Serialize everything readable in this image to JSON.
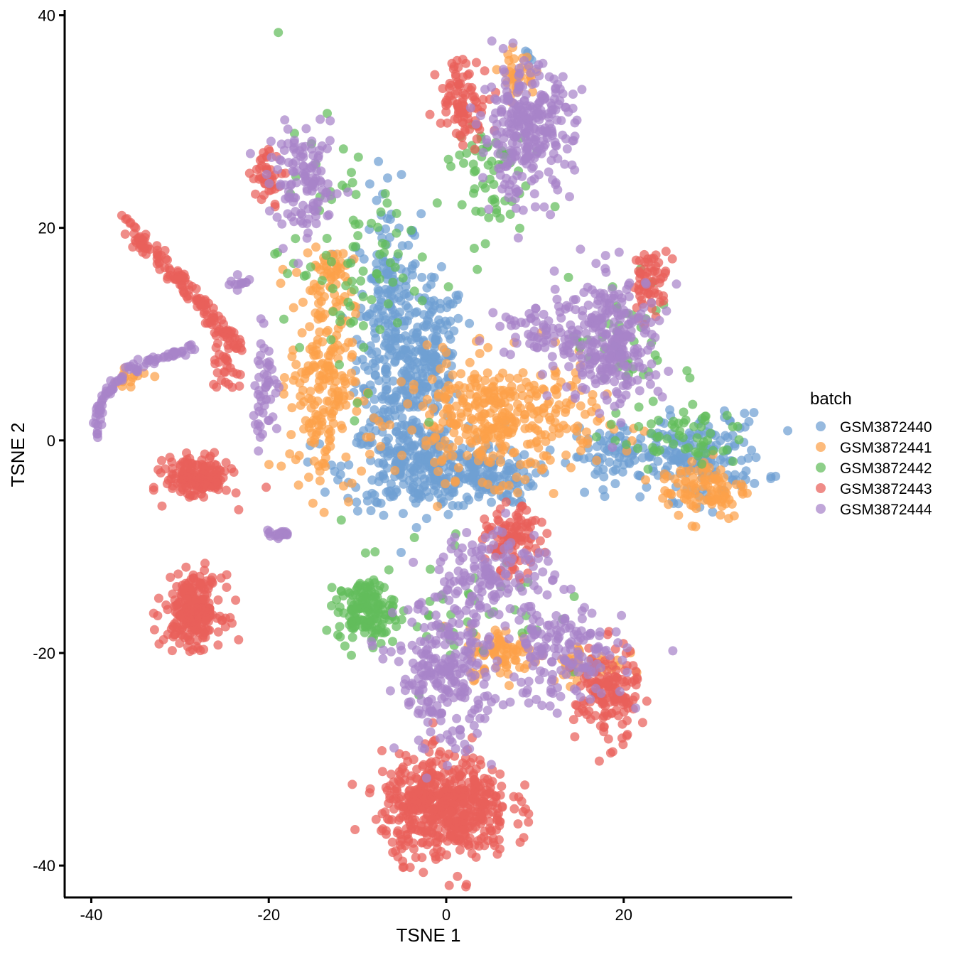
{
  "chart_data": {
    "type": "scatter",
    "xlabel": "TSNE 1",
    "ylabel": "TSNE 2",
    "xlim": [
      -43,
      39
    ],
    "ylim": [
      -43,
      40.5
    ],
    "x_ticks": [
      -40,
      -20,
      0,
      20
    ],
    "y_ticks": [
      40,
      20,
      0,
      -20,
      -40
    ],
    "x_tick_labels": [
      "-40",
      "-20",
      "0",
      "20"
    ],
    "y_tick_labels": [
      "40",
      "20",
      "0",
      "-20",
      "-40"
    ],
    "grid": false,
    "legend": {
      "title": "batch",
      "position": "right",
      "entries": [
        "GSM3872440",
        "GSM3872441",
        "GSM3872442",
        "GSM3872443",
        "GSM3872444"
      ]
    },
    "series": [
      {
        "name": "GSM3872440",
        "color": "#6f9fd2",
        "clusters": [
          {
            "x": -6.5,
            "y": 10,
            "sx": 1.8,
            "sy": 6.5,
            "n": 260
          },
          {
            "x": -3,
            "y": 5,
            "sx": 1.8,
            "sy": 3.5,
            "n": 120
          },
          {
            "x": -1,
            "y": 9,
            "sx": 1.5,
            "sy": 3,
            "n": 80
          },
          {
            "x": -2.5,
            "y": -2.5,
            "sx": 4.5,
            "sy": 2,
            "n": 260
          },
          {
            "x": 4,
            "y": -3.5,
            "sx": 3,
            "sy": 1.2,
            "n": 100
          },
          {
            "x": 28,
            "y": -1.5,
            "sx": 4,
            "sy": 2,
            "n": 180
          },
          {
            "x": 19,
            "y": -1.5,
            "sx": 2.5,
            "sy": 1.2,
            "n": 60
          },
          {
            "x": 9.5,
            "y": 36,
            "sx": 0.4,
            "sy": 0.3,
            "n": 4
          }
        ]
      },
      {
        "name": "GSM3872441",
        "color": "#fca149",
        "clusters": [
          {
            "x": 6,
            "y": 2,
            "sx": 5.5,
            "sy": 2.8,
            "n": 360
          },
          {
            "x": -14,
            "y": 6,
            "sx": 1.8,
            "sy": 5.5,
            "n": 220
          },
          {
            "x": 29,
            "y": -4.5,
            "sx": 2.5,
            "sy": 1.5,
            "n": 100
          },
          {
            "x": 6.5,
            "y": -20,
            "sx": 2,
            "sy": 1.2,
            "n": 80
          },
          {
            "x": 16,
            "y": -21,
            "sx": 2,
            "sy": 1,
            "n": 40
          },
          {
            "x": 8,
            "y": 34.5,
            "sx": 1,
            "sy": 1,
            "n": 40
          },
          {
            "x": -13,
            "y": 16,
            "sx": 1.2,
            "sy": 1,
            "n": 25
          },
          {
            "x": -36,
            "y": 6,
            "sx": 1.5,
            "sy": 0.6,
            "n": 15
          }
        ]
      },
      {
        "name": "GSM3872442",
        "color": "#63bc5c",
        "clusters": [
          {
            "x": -9,
            "y": -16,
            "sx": 1.6,
            "sy": 1.4,
            "n": 150
          },
          {
            "x": -11,
            "y": 17,
            "sx": 4,
            "sy": 6,
            "n": 90
          },
          {
            "x": 4,
            "y": 25,
            "sx": 2.5,
            "sy": 3,
            "n": 60
          },
          {
            "x": 26,
            "y": 0.5,
            "sx": 4,
            "sy": 1.5,
            "n": 60
          },
          {
            "x": 20,
            "y": 9,
            "sx": 3,
            "sy": 3,
            "n": 40
          },
          {
            "x": 0,
            "y": -15,
            "sx": 6,
            "sy": 4,
            "n": 50
          }
        ]
      },
      {
        "name": "GSM3872443",
        "color": "#e9605a",
        "clusters": [
          {
            "x": 0,
            "y": -34.5,
            "sx": 3.6,
            "sy": 2.4,
            "n": 560
          },
          {
            "x": -28.5,
            "y": -16,
            "sx": 1.6,
            "sy": 1.6,
            "n": 240
          },
          {
            "x": -28,
            "y": -3.5,
            "sx": 1.8,
            "sy": 1,
            "n": 170
          },
          {
            "x": 18,
            "y": -24,
            "sx": 1.8,
            "sy": 2.2,
            "n": 150
          },
          {
            "x": 7.5,
            "y": -9.5,
            "sx": 1.5,
            "sy": 1.5,
            "n": 110
          },
          {
            "x": 2,
            "y": 32,
            "sx": 1.5,
            "sy": 2,
            "n": 90
          },
          {
            "x": 23,
            "y": 15,
            "sx": 1,
            "sy": 1.5,
            "n": 60
          },
          {
            "x": -20,
            "y": 25,
            "sx": 1,
            "sy": 1.2,
            "n": 40
          },
          {
            "x": -25,
            "y": 7.5,
            "sx": 0.8,
            "sy": 1.5,
            "n": 30
          }
        ],
        "lines": [
          {
            "x0": -36,
            "y0": 20.5,
            "x1": -23.5,
            "y1": 9,
            "n": 140
          }
        ]
      },
      {
        "name": "GSM3872444",
        "color": "#a883c9",
        "clusters": [
          {
            "x": 9,
            "y": 29,
            "sx": 2.6,
            "sy": 3,
            "n": 280
          },
          {
            "x": 18.5,
            "y": 9.5,
            "sx": 3,
            "sy": 3,
            "n": 280
          },
          {
            "x": 0,
            "y": -22,
            "sx": 2.8,
            "sy": 3.5,
            "n": 260
          },
          {
            "x": 13,
            "y": -20,
            "sx": 3.5,
            "sy": 2.5,
            "n": 160
          },
          {
            "x": 5.5,
            "y": -12,
            "sx": 3,
            "sy": 2,
            "n": 120
          },
          {
            "x": -16,
            "y": 24,
            "sx": 2,
            "sy": 2.5,
            "n": 120
          },
          {
            "x": -20.5,
            "y": 5,
            "sx": 0.8,
            "sy": 2.5,
            "n": 50
          },
          {
            "x": 10,
            "y": 10.5,
            "sx": 2,
            "sy": 1.2,
            "n": 50
          },
          {
            "x": -19,
            "y": -8.8,
            "sx": 1,
            "sy": 0.15,
            "n": 20
          }
        ],
        "arcs": [
          {
            "points": [
              [
                -39.5,
                0
              ],
              [
                -39,
                3
              ],
              [
                -37.5,
                5.5
              ],
              [
                -35,
                7
              ],
              [
                -31.5,
                8
              ],
              [
                -28,
                9
              ]
            ],
            "n": 90
          },
          {
            "points": [
              [
                -25,
                14.5
              ],
              [
                -22,
                15
              ]
            ],
            "n": 12
          }
        ]
      }
    ]
  }
}
